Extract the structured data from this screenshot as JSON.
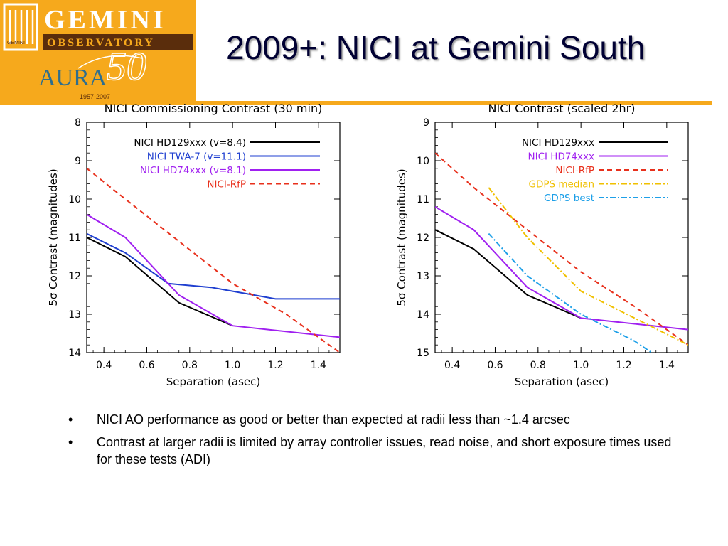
{
  "logo": {
    "gemini_letters": "GEMINI",
    "observatory": "OBSERVATORY",
    "aura": "AURA",
    "fifty": "50",
    "gemini_small": "GEMINI",
    "years": "1957-2007",
    "brand_color": "#f6a91c"
  },
  "slide": {
    "title": "2009+: NICI at Gemini South",
    "rule_dash": "–"
  },
  "bullets": [
    {
      "marker": "•",
      "text": "NICI AO performance as good or better than expected at radii less than ~1.4 arcsec"
    },
    {
      "marker": "•",
      "text": "Contrast at larger radii is limited by array controller issues, read noise, and short exposure times used for these tests (ADI)"
    }
  ],
  "chart_data": [
    {
      "type": "line",
      "title": "NICI Commissioning Contrast (30 min)",
      "xlabel": "Separation (asec)",
      "ylabel": "5σ Contrast (magnitudes)",
      "xlim": [
        0.32,
        1.5
      ],
      "ylim": [
        8,
        14
      ],
      "y_inverted": true,
      "xticks": [
        "0.4",
        "0.6",
        "0.8",
        "1.0",
        "1.2",
        "1.4"
      ],
      "yticks": [
        "8",
        "9",
        "10",
        "11",
        "12",
        "13",
        "14"
      ],
      "legend": "top-right",
      "series": [
        {
          "name": "NICI HD129xxx (v=8.4)",
          "color": "#000000",
          "dash": "solid",
          "x": [
            0.32,
            0.5,
            0.75,
            1.0
          ],
          "y": [
            11.0,
            11.5,
            12.7,
            13.3
          ]
        },
        {
          "name": "NICI TWA-7 (v=11.1)",
          "color": "#1f3fd0",
          "dash": "solid",
          "x": [
            0.32,
            0.5,
            0.7,
            0.9,
            1.0,
            1.2,
            1.5
          ],
          "y": [
            10.9,
            11.4,
            12.2,
            12.3,
            12.4,
            12.6,
            12.6
          ]
        },
        {
          "name": "NICI HD74xxx (v=8.1)",
          "color": "#a020f0",
          "dash": "solid",
          "x": [
            0.32,
            0.5,
            0.75,
            1.0,
            1.5
          ],
          "y": [
            10.4,
            11.0,
            12.5,
            13.3,
            13.6
          ]
        },
        {
          "name": "NICI-RfP",
          "color": "#e8301c",
          "dash": "dash",
          "x": [
            0.32,
            0.5,
            0.75,
            1.0,
            1.25,
            1.5
          ],
          "y": [
            9.2,
            10.0,
            11.1,
            12.2,
            13.0,
            14.0
          ]
        }
      ]
    },
    {
      "type": "line",
      "title": "NICI Contrast (scaled 2hr)",
      "xlabel": "Separation (asec)",
      "ylabel": "5σ Contrast (magnitudes)",
      "xlim": [
        0.32,
        1.5
      ],
      "ylim": [
        9,
        15
      ],
      "y_inverted": true,
      "xticks": [
        "0.4",
        "0.6",
        "0.8",
        "1.0",
        "1.2",
        "1.4"
      ],
      "yticks": [
        "9",
        "10",
        "11",
        "12",
        "13",
        "14",
        "15"
      ],
      "legend": "top-right",
      "series": [
        {
          "name": "NICI HD129xxx",
          "color": "#000000",
          "dash": "solid",
          "x": [
            0.32,
            0.5,
            0.75,
            1.0
          ],
          "y": [
            11.8,
            12.3,
            13.5,
            14.1
          ]
        },
        {
          "name": "NICI HD74xxx",
          "color": "#a020f0",
          "dash": "solid",
          "x": [
            0.32,
            0.5,
            0.75,
            1.0,
            1.5
          ],
          "y": [
            11.2,
            11.8,
            13.3,
            14.1,
            14.4
          ]
        },
        {
          "name": "NICI-RfP",
          "color": "#e8301c",
          "dash": "dash",
          "x": [
            0.32,
            0.5,
            0.75,
            1.0,
            1.25,
            1.5
          ],
          "y": [
            9.8,
            10.7,
            11.8,
            12.9,
            13.8,
            14.8
          ]
        },
        {
          "name": "GDPS median",
          "color": "#f0c000",
          "dash": "dashdot",
          "x": [
            0.57,
            0.75,
            1.0,
            1.25,
            1.5
          ],
          "y": [
            10.7,
            12.0,
            13.4,
            14.1,
            14.8
          ]
        },
        {
          "name": "GDPS best",
          "color": "#1ea0e8",
          "dash": "dashdot",
          "x": [
            0.57,
            0.75,
            1.0,
            1.25,
            1.33
          ],
          "y": [
            11.9,
            13.0,
            14.0,
            14.7,
            15.0
          ]
        }
      ]
    }
  ]
}
